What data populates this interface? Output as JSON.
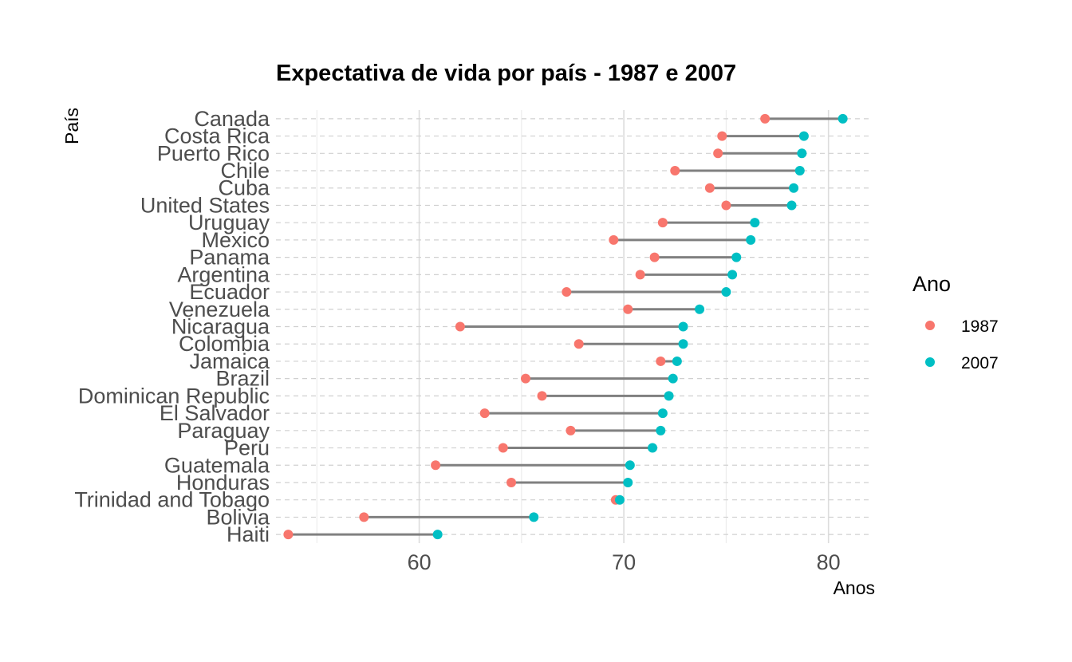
{
  "chart_data": {
    "type": "dumbbell",
    "title": "Expectativa de vida por país - 1987 e 2007",
    "xlabel": "Anos",
    "ylabel": "País",
    "xlim": [
      53,
      82
    ],
    "xticks": [
      60,
      70,
      80
    ],
    "x_minor_ticks": [
      55,
      65,
      75
    ],
    "grid": true,
    "legend": {
      "title": "Ano",
      "position": "right",
      "entries": [
        {
          "label": "1987",
          "color": "#F8766D"
        },
        {
          "label": "2007",
          "color": "#00BFC4"
        }
      ]
    },
    "connector_color": "#808080",
    "categories": [
      "Canada",
      "Costa Rica",
      "Puerto Rico",
      "Chile",
      "Cuba",
      "United States",
      "Uruguay",
      "Mexico",
      "Panama",
      "Argentina",
      "Ecuador",
      "Venezuela",
      "Nicaragua",
      "Colombia",
      "Jamaica",
      "Brazil",
      "Dominican Republic",
      "El Salvador",
      "Paraguay",
      "Peru",
      "Guatemala",
      "Honduras",
      "Trinidad and Tobago",
      "Bolivia",
      "Haiti"
    ],
    "series": [
      {
        "name": "1987",
        "color": "#F8766D",
        "values": [
          76.9,
          74.8,
          74.6,
          72.5,
          74.2,
          75.0,
          71.9,
          69.5,
          71.5,
          70.8,
          67.2,
          70.2,
          62.0,
          67.8,
          71.8,
          65.2,
          66.0,
          63.2,
          67.4,
          64.1,
          60.8,
          64.5,
          69.6,
          57.3,
          53.6
        ]
      },
      {
        "name": "2007",
        "color": "#00BFC4",
        "values": [
          80.7,
          78.8,
          78.7,
          78.6,
          78.3,
          78.2,
          76.4,
          76.2,
          75.5,
          75.3,
          75.0,
          73.7,
          72.9,
          72.9,
          72.6,
          72.4,
          72.2,
          71.9,
          71.8,
          71.4,
          70.3,
          70.2,
          69.8,
          65.6,
          60.9
        ]
      }
    ]
  }
}
